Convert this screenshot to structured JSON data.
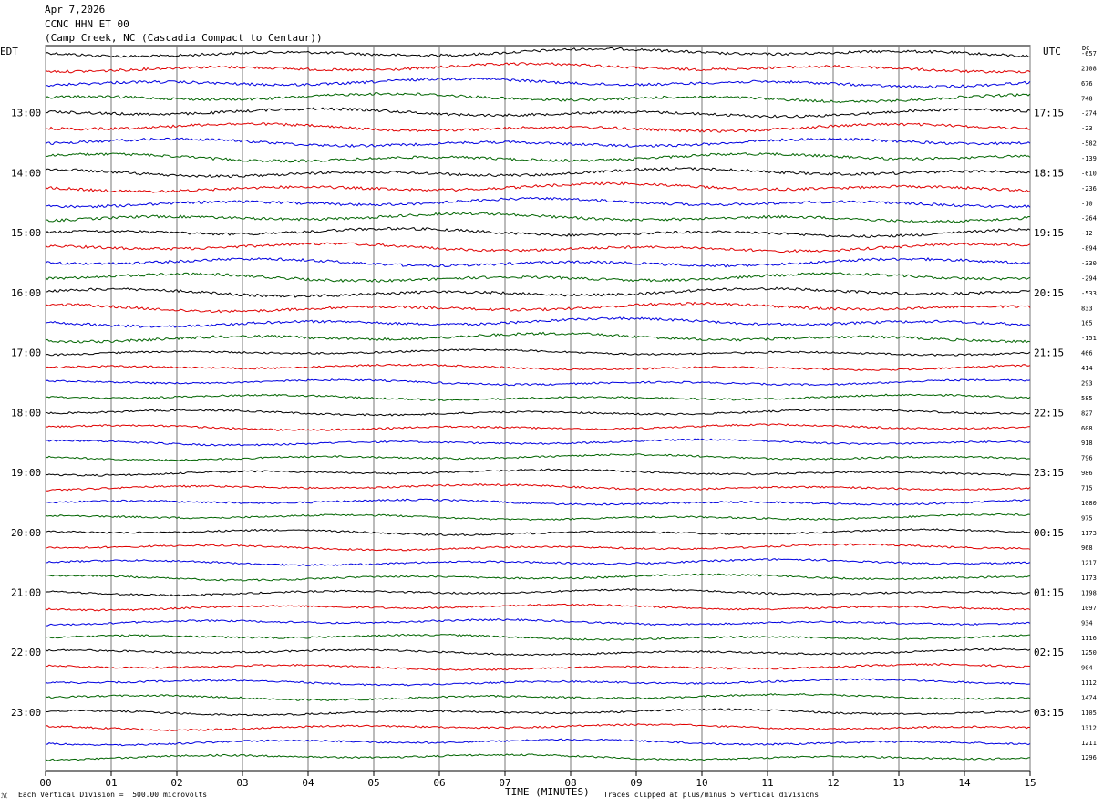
{
  "header": {
    "date": "Apr 7,2026",
    "station": "CCNC HHN ET 00",
    "location": "(Camp Creek, NC (Cascadia Compact to Centaur))"
  },
  "labels": {
    "left_timezone": "EDT",
    "right_timezone": "UTC",
    "dc": "DC",
    "xlabel": "TIME (MINUTES)",
    "division_note": "Each Vertical Division =  500.00 microvolts",
    "clip_note": "Traces clipped at plus/minus 5 vertical divisions",
    "corner_mark": "ℳ"
  },
  "chart_data": {
    "type": "line",
    "title": "CCNC HHN ET 00",
    "xlabel": "TIME (MINUTES)",
    "xlim": [
      0,
      15
    ],
    "x_ticks": [
      "00",
      "01",
      "02",
      "03",
      "04",
      "05",
      "06",
      "07",
      "08",
      "09",
      "10",
      "11",
      "12",
      "13",
      "14",
      "15"
    ],
    "edt_ticks": [
      "13:00",
      "14:00",
      "15:00",
      "16:00",
      "17:00",
      "18:00",
      "19:00",
      "20:00",
      "21:00",
      "22:00",
      "23:00"
    ],
    "utc_ticks": [
      "17:15",
      "18:15",
      "19:15",
      "20:15",
      "21:15",
      "22:15",
      "23:15",
      "00:15",
      "01:15",
      "02:15",
      "03:15"
    ],
    "first_row_time_edt": "12:15",
    "row_interval_minutes": 15,
    "trace_colors": [
      "#000000",
      "#e00000",
      "#0000e0",
      "#006400"
    ],
    "dc_offsets": [
      -657,
      2108,
      676,
      748,
      -274,
      -23,
      -582,
      -139,
      -610,
      -236,
      -10,
      -264,
      -12,
      -894,
      -330,
      -294,
      -533,
      833,
      165,
      -151,
      466,
      414,
      293,
      585,
      827,
      608,
      918,
      796,
      986,
      715,
      1080,
      975,
      1173,
      968,
      1217,
      1173,
      1198,
      1097,
      934,
      1116,
      1250,
      904,
      1112,
      1474,
      1105,
      1312,
      1211,
      1296
    ],
    "vertical_division_microvolts": 500.0,
    "clip_divisions": 5
  }
}
